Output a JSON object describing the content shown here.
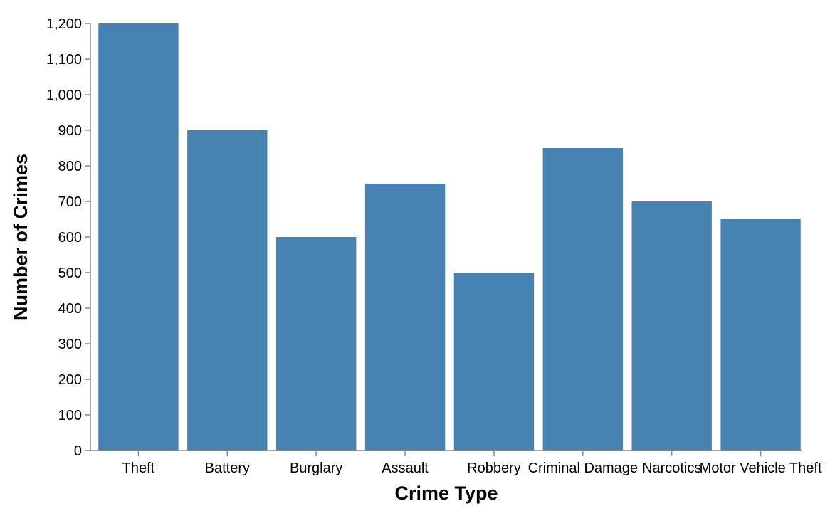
{
  "chart_data": {
    "type": "bar",
    "categories": [
      "Theft",
      "Battery",
      "Burglary",
      "Assault",
      "Robbery",
      "Criminal Damage",
      "Narcotics",
      "Motor Vehicle Theft"
    ],
    "values": [
      1200,
      900,
      600,
      750,
      500,
      850,
      700,
      650
    ],
    "xlabel": "Crime Type",
    "ylabel": "Number of Crimes",
    "ylim": [
      0,
      1200
    ],
    "yticks": [
      0,
      100,
      200,
      300,
      400,
      500,
      600,
      700,
      800,
      900,
      1000,
      1100,
      1200
    ],
    "bar_color": "#4682b4",
    "grid": false,
    "legend": "none"
  }
}
